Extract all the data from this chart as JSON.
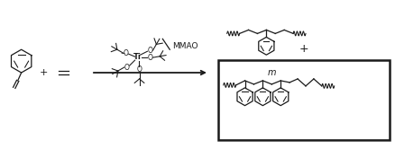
{
  "bg_color": "#ffffff",
  "line_color": "#1a1a1a",
  "fig_width": 4.38,
  "fig_height": 1.65,
  "dpi": 100,
  "mmao_text": "MMAO",
  "m_label": "m",
  "ti_label": "Ti",
  "plus_signs": [
    "+",
    "+"
  ]
}
